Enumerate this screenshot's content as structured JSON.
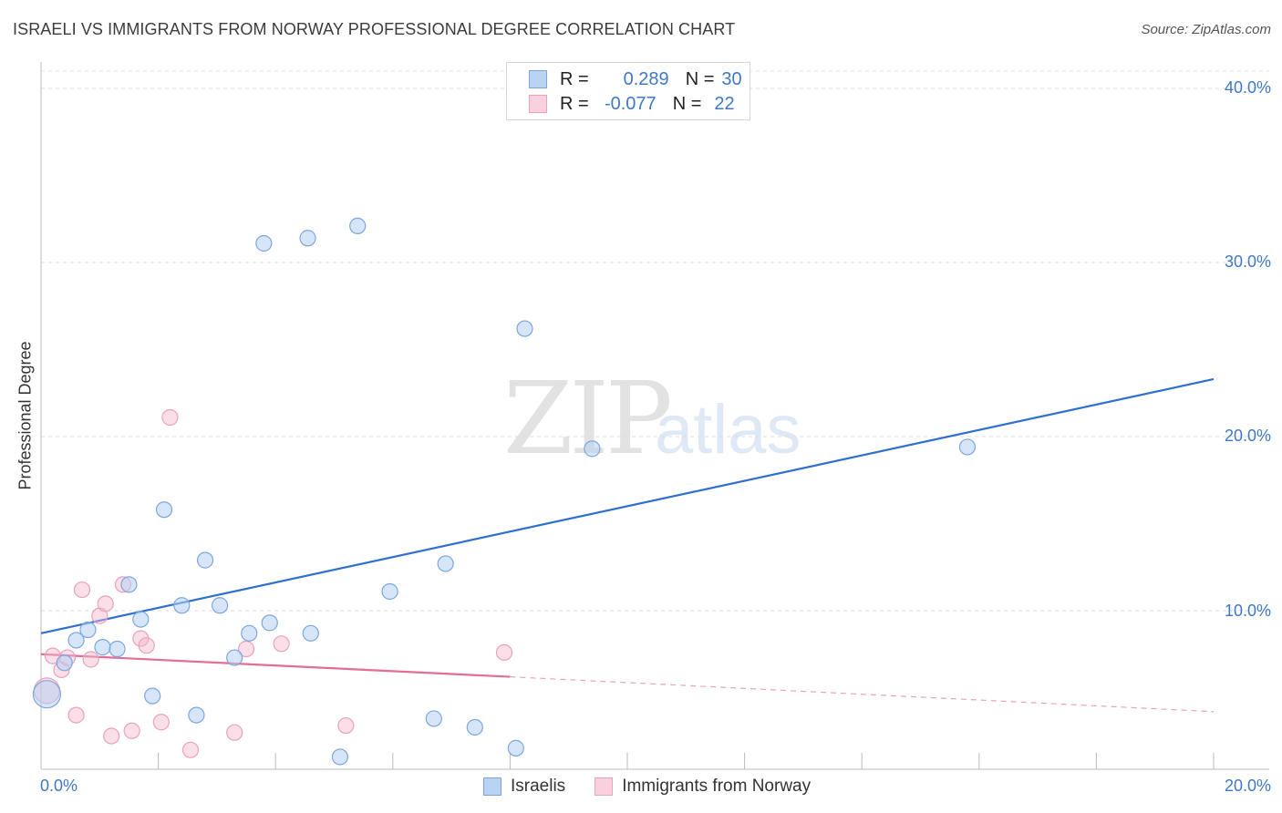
{
  "title": "ISRAELI VS IMMIGRANTS FROM NORWAY PROFESSIONAL DEGREE CORRELATION CHART",
  "source": "Source: ZipAtlas.com",
  "watermark": {
    "zip": "ZIP",
    "atlas": "atlas"
  },
  "legend": {
    "israelis": {
      "r_label": "R =",
      "r_value": "0.289",
      "n_label": "N =",
      "n_value": "30"
    },
    "norway": {
      "r_label": "R =",
      "r_value": "-0.077",
      "n_label": "N =",
      "n_value": "22"
    }
  },
  "bottom_legend": {
    "israelis": "Israelis",
    "norway": "Immigrants from Norway"
  },
  "colors": {
    "blue": "#3f78c8",
    "blue_fill": "#b9d3f3",
    "pink": "#e46c98",
    "pink_fill": "#f5c0d1"
  },
  "chart_data": {
    "type": "scatter",
    "ylabel": "Professional Degree",
    "xlim": [
      0,
      20
    ],
    "ylim": [
      0,
      42
    ],
    "x_tick_labels": [
      "0.0%",
      "20.0%"
    ],
    "y_ticks": [
      10,
      20,
      30,
      40
    ],
    "y_tick_labels": [
      "10.0%",
      "20.0%",
      "30.0%",
      "40.0%"
    ],
    "grid": true,
    "series": [
      {
        "name": "Israelis",
        "color": "#3f78c8",
        "points": [
          [
            0.1,
            5.2
          ],
          [
            0.4,
            7.0
          ],
          [
            0.6,
            8.3
          ],
          [
            0.8,
            8.9
          ],
          [
            1.05,
            7.9
          ],
          [
            1.3,
            7.8
          ],
          [
            1.5,
            11.5
          ],
          [
            1.7,
            9.5
          ],
          [
            1.9,
            5.1
          ],
          [
            2.1,
            15.8
          ],
          [
            2.4,
            10.3
          ],
          [
            2.65,
            4.0
          ],
          [
            2.8,
            12.9
          ],
          [
            3.05,
            10.3
          ],
          [
            3.3,
            7.3
          ],
          [
            3.55,
            8.7
          ],
          [
            3.8,
            31.1
          ],
          [
            3.9,
            9.3
          ],
          [
            4.55,
            31.4
          ],
          [
            4.6,
            8.7
          ],
          [
            5.1,
            1.6
          ],
          [
            5.4,
            32.1
          ],
          [
            5.95,
            11.1
          ],
          [
            6.7,
            3.8
          ],
          [
            6.9,
            12.7
          ],
          [
            7.4,
            3.3
          ],
          [
            8.1,
            2.1
          ],
          [
            8.25,
            26.2
          ],
          [
            9.4,
            19.3
          ],
          [
            15.8,
            19.4
          ]
        ],
        "trend": {
          "x": [
            0,
            20
          ],
          "y": [
            8.7,
            23.3
          ]
        }
      },
      {
        "name": "Immigrants from Norway",
        "color": "#e46c98",
        "points": [
          [
            0.1,
            5.4
          ],
          [
            0.2,
            7.4
          ],
          [
            0.35,
            6.6
          ],
          [
            0.45,
            7.3
          ],
          [
            0.6,
            4.0
          ],
          [
            0.7,
            11.2
          ],
          [
            0.85,
            7.2
          ],
          [
            1.0,
            9.7
          ],
          [
            1.1,
            10.4
          ],
          [
            1.2,
            2.8
          ],
          [
            1.4,
            11.5
          ],
          [
            1.55,
            3.1
          ],
          [
            1.7,
            8.4
          ],
          [
            1.8,
            8.0
          ],
          [
            2.05,
            3.6
          ],
          [
            2.2,
            21.1
          ],
          [
            2.55,
            2.0
          ],
          [
            3.3,
            3.0
          ],
          [
            3.5,
            7.8
          ],
          [
            4.1,
            8.1
          ],
          [
            5.2,
            3.4
          ],
          [
            7.9,
            7.6
          ]
        ],
        "trend_solid": {
          "x": [
            0,
            8
          ],
          "y": [
            7.5,
            6.2
          ]
        },
        "trend_dashed": {
          "x": [
            8,
            20
          ],
          "y": [
            6.2,
            4.2
          ]
        }
      }
    ]
  }
}
